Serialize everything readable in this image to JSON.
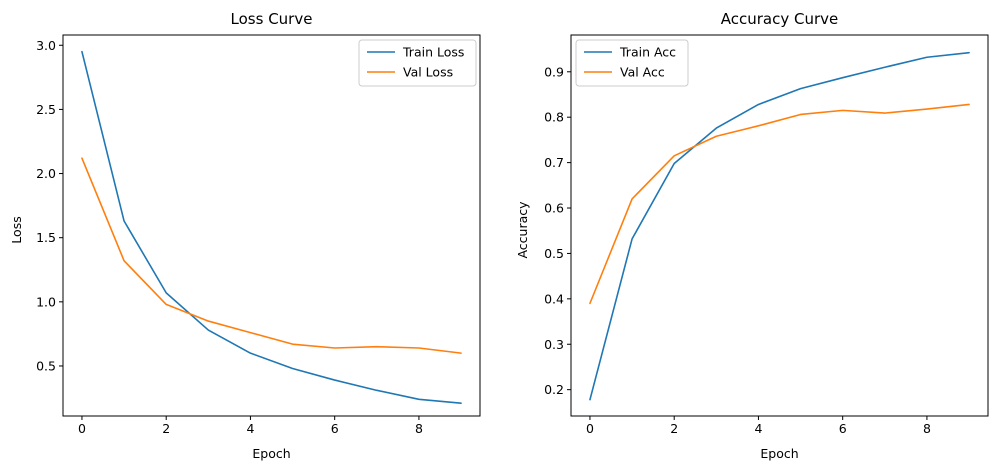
{
  "chart_data": [
    {
      "type": "line",
      "title": "Loss Curve",
      "xlabel": "Epoch",
      "ylabel": "Loss",
      "x": [
        0,
        1,
        2,
        3,
        4,
        5,
        6,
        7,
        8,
        9
      ],
      "xlim": [
        -0.45,
        9.45
      ],
      "ylim": [
        0.11,
        3.08
      ],
      "xticks": [
        "0",
        "2",
        "4",
        "6",
        "8"
      ],
      "yticks": [
        "0.5",
        "1.0",
        "1.5",
        "2.0",
        "2.5",
        "3.0"
      ],
      "legend_loc": "upper right",
      "series": [
        {
          "name": "Train Loss",
          "color": "#1f77b4",
          "values": [
            2.95,
            1.63,
            1.07,
            0.78,
            0.6,
            0.48,
            0.39,
            0.31,
            0.24,
            0.21
          ]
        },
        {
          "name": "Val Loss",
          "color": "#ff7f0e",
          "values": [
            2.12,
            1.32,
            0.98,
            0.85,
            0.76,
            0.67,
            0.64,
            0.65,
            0.64,
            0.6
          ]
        }
      ]
    },
    {
      "type": "line",
      "title": "Accuracy Curve",
      "xlabel": "Epoch",
      "ylabel": "Accuracy",
      "x": [
        0,
        1,
        2,
        3,
        4,
        5,
        6,
        7,
        8,
        9
      ],
      "xlim": [
        -0.45,
        9.45
      ],
      "ylim": [
        0.142,
        0.981
      ],
      "xticks": [
        "0",
        "2",
        "4",
        "6",
        "8"
      ],
      "yticks": [
        "0.2",
        "0.3",
        "0.4",
        "0.5",
        "0.6",
        "0.7",
        "0.8",
        "0.9"
      ],
      "legend_loc": "upper left",
      "series": [
        {
          "name": "Train Acc",
          "color": "#1f77b4",
          "values": [
            0.178,
            0.532,
            0.698,
            0.776,
            0.828,
            0.863,
            0.887,
            0.91,
            0.932,
            0.942
          ]
        },
        {
          "name": "Val Acc",
          "color": "#ff7f0e",
          "values": [
            0.39,
            0.62,
            0.715,
            0.758,
            0.781,
            0.806,
            0.815,
            0.809,
            0.818,
            0.828
          ]
        }
      ]
    }
  ]
}
